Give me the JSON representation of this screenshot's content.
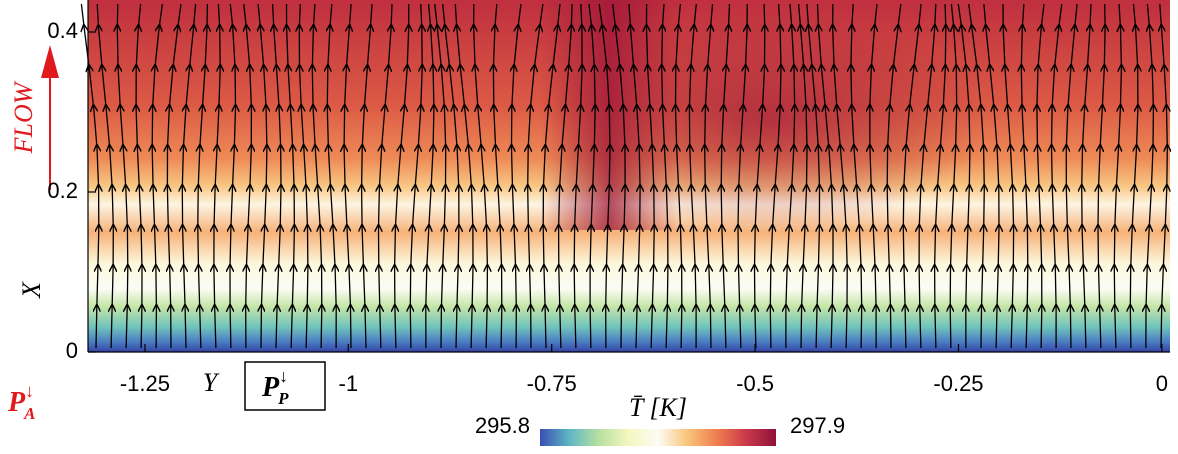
{
  "chart_data": {
    "type": "field",
    "x_label": "Y",
    "y_label": "X",
    "xlim": [
      -1.32,
      0.01
    ],
    "ylim": [
      0,
      0.44
    ],
    "xticks": [
      -1.25,
      -1,
      -0.75,
      -0.5,
      -0.25,
      0
    ],
    "yticks": [
      0,
      0.2,
      0.4
    ],
    "colorbar": {
      "label": "T̄ [K]",
      "clim": [
        295.8,
        297.9
      ],
      "colors": [
        "#3a4fb4",
        "#5fb7c4",
        "#b8e0a0",
        "#f4f7c0",
        "#fcfcf4",
        "#f9c57a",
        "#ef7d4e",
        "#c9394a",
        "#8e1238"
      ]
    },
    "streamline_color": "#000000",
    "annotations": {
      "flow": "FLOW",
      "probe_p": {
        "base": "P",
        "sup": "↓",
        "sub": "P"
      },
      "probe_a": {
        "base": "P",
        "sup": "↓",
        "sub": "A"
      }
    }
  }
}
